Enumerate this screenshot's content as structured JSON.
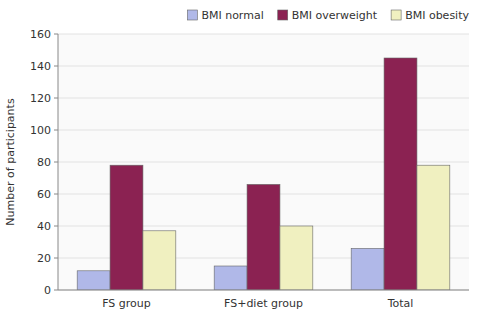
{
  "chart_data": {
    "type": "bar",
    "categories": [
      "FS group",
      "FS+diet group",
      "Total"
    ],
    "series": [
      {
        "name": "BMI normal",
        "color": "#b0b8e8",
        "values": [
          12,
          15,
          26
        ]
      },
      {
        "name": "BMI overweight",
        "color": "#8b2252",
        "values": [
          78,
          66,
          145
        ]
      },
      {
        "name": "BMI obesity",
        "color": "#f0f0c0",
        "values": [
          37,
          40,
          78
        ]
      }
    ],
    "ylabel": "Number of participants",
    "ylim": [
      0,
      160
    ],
    "yticks": [
      0,
      20,
      40,
      60,
      80,
      100,
      120,
      140,
      160
    ],
    "grid": true,
    "legend": "upper right"
  }
}
